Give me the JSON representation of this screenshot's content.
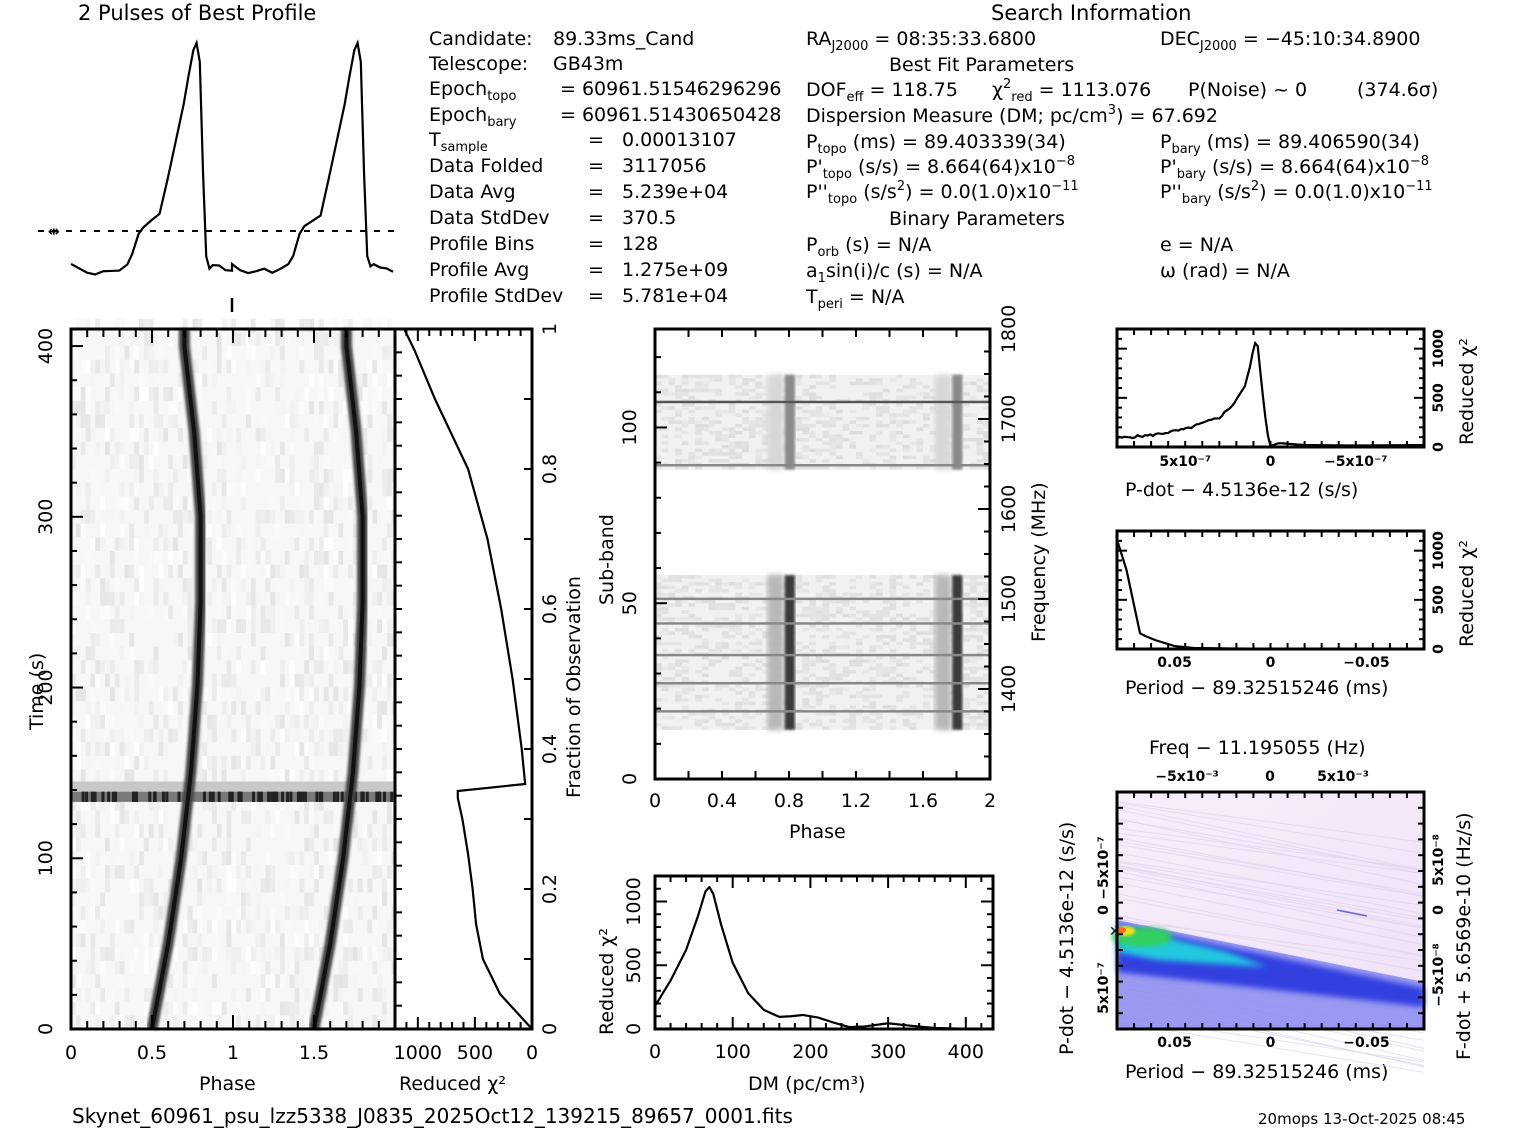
{
  "header": {
    "profile_title": "2 Pulses of Best Profile",
    "search_title": "Search Information",
    "best_fit_title": "Best Fit Parameters",
    "binary_title": "Binary Parameters"
  },
  "candidate_info": {
    "candidate": {
      "label": "Candidate:",
      "value": "89.33ms_Cand"
    },
    "telescope": {
      "label": "Telescope:",
      "value": "GB43m"
    },
    "epoch_topo": {
      "label": "Epoch",
      "sub": "topo",
      "value": "= 60961.51546296296"
    },
    "epoch_bary": {
      "label": "Epoch",
      "sub": "bary",
      "value": "= 60961.51430650428"
    },
    "t_sample": {
      "label": "T",
      "sub": "sample",
      "value": "0.00013107"
    },
    "data_folded": {
      "label": "Data Folded",
      "value": "3117056"
    },
    "data_avg": {
      "label": "Data Avg",
      "value": "5.239e+04"
    },
    "data_stddev": {
      "label": "Data StdDev",
      "value": "370.5"
    },
    "profile_bins": {
      "label": "Profile Bins",
      "value": "128"
    },
    "profile_avg": {
      "label": "Profile Avg",
      "value": "1.275e+09"
    },
    "profile_stddev": {
      "label": "Profile StdDev",
      "value": "5.781e+04"
    },
    "equals": "="
  },
  "search_info": {
    "ra": {
      "label": "RA",
      "sub": "J2000",
      "value": "= 08:35:33.6800"
    },
    "dec": {
      "label": "DEC",
      "sub": "J2000",
      "value": "= −45:10:34.8900"
    },
    "dof": {
      "label": "DOF",
      "sub": "eff",
      "value": "= 118.75"
    },
    "chi2": {
      "label": "χ",
      "sup": "2",
      "sub": "red",
      "value": "= 1113.076"
    },
    "p_noise": "P(Noise) ~ 0",
    "sigma": "(374.6σ)",
    "dm": {
      "text": "Dispersion Measure (DM; pc/cm",
      "sup": "3",
      "tail": ") = 67.692"
    },
    "p_topo": {
      "label": "P",
      "sub": "topo",
      "value": "(ms) =  89.403339(34)"
    },
    "p_bary": {
      "label": "P",
      "sub": "bary",
      "value": "(ms) =  89.406590(34)"
    },
    "pd_topo": {
      "label": "P'",
      "sub": "topo",
      "value": "(s/s) =  8.664(64)x10",
      "exp": "−8"
    },
    "pd_bary": {
      "label": "P'",
      "sub": "bary",
      "value": "(s/s) =  8.664(64)x10",
      "exp": "−8"
    },
    "pdd_topo": {
      "label": "P''",
      "sub": "topo",
      "value_a": "(s/s",
      "value_sup": "2",
      "value_b": ") = 0.0(1.0)x10",
      "exp": "−11"
    },
    "pdd_bary": {
      "label": "P''",
      "sub": "bary",
      "value_a": "(s/s",
      "value_sup": "2",
      "value_b": ") = 0.0(1.0)x10",
      "exp": "−11"
    },
    "p_orb": {
      "label": "P",
      "sub": "orb",
      "value": "(s) = N/A"
    },
    "e": "e = N/A",
    "a1sini": {
      "label": "a",
      "sub": "1",
      "value": "sin(i)/c (s) = N/A"
    },
    "omega": "ω (rad) = N/A",
    "t_peri": {
      "label": "T",
      "sub": "peri",
      "value": "= N/A"
    }
  },
  "footer": {
    "filename": "Skynet_60961_psu_lzz5338_J0835_2025Oct12_139215_89657_0001.fits",
    "stamp": "20mops 13-Oct-2025 08:45"
  },
  "chart_data": [
    {
      "id": "profile",
      "type": "line",
      "title": "2 Pulses of Best Profile",
      "xlabel": "Phase",
      "ylabel": "",
      "xlim": [
        0,
        2
      ],
      "description": "Pulse profile repeated twice; baseline ~0.05, shoulder ~0.2 at phase 0.5, peak 1.0 at phase ~0.78; dashed line marks mean level",
      "x": [
        0.0,
        0.05,
        0.1,
        0.15,
        0.2,
        0.25,
        0.3,
        0.35,
        0.38,
        0.42,
        0.45,
        0.5,
        0.55,
        0.6,
        0.65,
        0.7,
        0.73,
        0.76,
        0.78,
        0.8,
        0.82,
        0.84,
        0.86,
        0.88,
        0.92,
        0.96,
        1.0
      ],
      "y": [
        0.06,
        0.04,
        0.03,
        0.02,
        0.03,
        0.03,
        0.04,
        0.05,
        0.1,
        0.19,
        0.22,
        0.24,
        0.27,
        0.42,
        0.58,
        0.74,
        0.86,
        0.97,
        1.0,
        0.92,
        0.45,
        0.1,
        0.04,
        0.06,
        0.05,
        0.04,
        0.03
      ],
      "mean_level": 0.2
    },
    {
      "id": "time-phase",
      "type": "heatmap",
      "xlabel": "Phase",
      "ylabel": "Time (s)",
      "xlim": [
        0,
        2
      ],
      "ylim": [
        0,
        410
      ],
      "xticks": [
        "0",
        "0.5",
        "1",
        "1.5"
      ],
      "yticks": [
        "0",
        "100",
        "200",
        "300",
        "400"
      ],
      "pulse_track_phase": {
        "time": [
          0,
          50,
          100,
          150,
          200,
          250,
          300,
          350,
          400
        ],
        "phase": [
          0.5,
          0.6,
          0.68,
          0.74,
          0.78,
          0.8,
          0.8,
          0.76,
          0.7
        ]
      },
      "rfi_band_time": [
        133,
        145
      ]
    },
    {
      "id": "time-chi2",
      "type": "line",
      "xlabel": "Reduced χ²",
      "ylabel": "Fraction of Observation",
      "xlim": [
        1200,
        0
      ],
      "ylim": [
        0,
        1
      ],
      "xticks": [
        "1000",
        "500",
        "0"
      ],
      "yticks": [
        "0",
        "0.2",
        "0.4",
        "0.6",
        "0.8",
        "1"
      ],
      "fraction": [
        0,
        0.05,
        0.1,
        0.15,
        0.2,
        0.25,
        0.3,
        0.33,
        0.34,
        0.35,
        0.4,
        0.5,
        0.6,
        0.7,
        0.8,
        0.9,
        0.97,
        1.0
      ],
      "chi2": [
        0,
        280,
        430,
        490,
        520,
        560,
        610,
        650,
        650,
        60,
        90,
        170,
        270,
        390,
        560,
        850,
        1030,
        1120
      ]
    },
    {
      "id": "subband-phase",
      "type": "heatmap",
      "xlabel": "Phase",
      "ylabel": "Sub-band",
      "y2label": "Frequency (MHz)",
      "xlim": [
        0,
        2
      ],
      "ylim": [
        0,
        128
      ],
      "y2lim": [
        1300,
        1800
      ],
      "xticks": [
        "0",
        "0.4",
        "0.8",
        "1.2",
        "1.6",
        "2"
      ],
      "yticks": [
        "0",
        "50",
        "100"
      ],
      "y2ticks": [
        "1400",
        "1500",
        "1600",
        "1700",
        "1800"
      ],
      "data_bands": [
        [
          14,
          58
        ],
        [
          88,
          115
        ]
      ],
      "pulse_phase": 0.8
    },
    {
      "id": "dm-chi2",
      "type": "line",
      "xlabel": "DM (pc/cm³)",
      "ylabel": "Reduced χ²",
      "xlim": [
        0,
        435
      ],
      "ylim": [
        0,
        1200
      ],
      "xticks": [
        "0",
        "100",
        "200",
        "300",
        "400"
      ],
      "yticks": [
        "0",
        "500",
        "1000"
      ],
      "x": [
        0,
        20,
        40,
        55,
        65,
        70,
        75,
        85,
        100,
        120,
        140,
        160,
        175,
        190,
        210,
        230,
        250,
        270,
        300,
        330,
        360,
        400,
        435
      ],
      "y": [
        180,
        380,
        620,
        880,
        1080,
        1113,
        1060,
        820,
        520,
        280,
        150,
        95,
        100,
        110,
        90,
        50,
        15,
        20,
        45,
        25,
        8,
        2,
        0
      ]
    },
    {
      "id": "pdot-chi2",
      "type": "line",
      "xlabel": "P-dot − 4.5136e-12 (s/s)",
      "ylabel": "Reduced χ²",
      "xlim": [
        9e-07,
        -9e-07
      ],
      "ylim": [
        0,
        1200
      ],
      "xticks": [
        "5x10⁻⁷",
        "0",
        "−5x10⁻⁷"
      ],
      "yticks": [
        "0",
        "500",
        "1000"
      ],
      "x": [
        9e-07,
        7e-07,
        5e-07,
        3e-07,
        2.2e-07,
        1.5e-07,
        1.2e-07,
        1e-07,
        8e-08,
        5e-08,
        2e-08,
        0,
        -5e-08,
        -2e-07,
        -5e-07,
        -9e-07
      ],
      "y": [
        90,
        120,
        180,
        300,
        430,
        620,
        820,
        1000,
        1113,
        600,
        150,
        10,
        40,
        20,
        15,
        20
      ]
    },
    {
      "id": "period-chi2",
      "type": "line",
      "xlabel": "Period − 89.32515246 (ms)",
      "ylabel": "Reduced χ²",
      "xlim": [
        0.08,
        -0.08
      ],
      "ylim": [
        0,
        1200
      ],
      "xticks": [
        "0.05",
        "0",
        "−0.05"
      ],
      "yticks": [
        "0",
        "500",
        "1000"
      ],
      "x": [
        0.08,
        0.075,
        0.068,
        0.065,
        0.06,
        0.05,
        0.04,
        0.02,
        0,
        -0.04,
        -0.08
      ],
      "y": [
        1113,
        800,
        160,
        130,
        90,
        30,
        10,
        5,
        3,
        3,
        3
      ]
    },
    {
      "id": "p-pdot-plane",
      "type": "heatmap",
      "title": "Freq − 11.195055 (Hz)",
      "xlabel": "Period − 89.32515246 (ms)",
      "ylabel": "P-dot − 4.5136e-12 (s/s)",
      "y2label": "F-dot + 5.6569e-10 (Hz/s)",
      "xlim": [
        0.08,
        -0.08
      ],
      "xticks": [
        "0.05",
        "0",
        "−0.05"
      ],
      "x2ticks": [
        "−5x10⁻³",
        "0",
        "5x10⁻³"
      ],
      "yticks": [
        "−5x10⁻⁷",
        "0",
        "5x10⁻⁷"
      ],
      "y2ticks": [
        "5x10⁻⁸",
        "0",
        "−5x10⁻⁸"
      ],
      "best_point": {
        "period_offset": 0.08,
        "pdot_offset": 8e-08
      },
      "colors": {
        "low": "#f4e6f8",
        "mid": "#3340e0",
        "high": "#e8e020",
        "peak": "#ff6a10"
      }
    }
  ]
}
